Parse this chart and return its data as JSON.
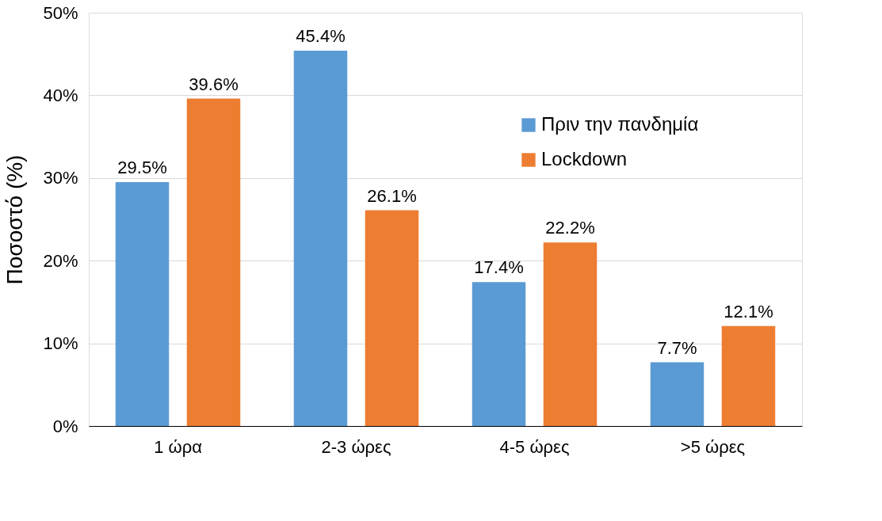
{
  "chart_data": {
    "type": "bar",
    "ylabel": "Ποσοστό (%)",
    "categories": [
      "1 ώρα",
      "2-3 ώρες",
      "4-5 ώρες",
      ">5 ώρες"
    ],
    "series": [
      {
        "name": "Πριν την πανδημία",
        "color": "#5b9bd5",
        "values": [
          29.5,
          45.4,
          17.4,
          7.7
        ],
        "value_labels": [
          "29.5%",
          "45.4%",
          "17.4%",
          "7.7%"
        ]
      },
      {
        "name": "Lockdown",
        "color": "#ed7d31",
        "values": [
          39.6,
          26.1,
          22.2,
          12.1
        ],
        "value_labels": [
          "39.6%",
          "26.1%",
          "22.2%",
          "12.1%"
        ]
      }
    ],
    "ylim": [
      0,
      50
    ],
    "yticks": [
      {
        "value": 0,
        "label": "0%"
      },
      {
        "value": 10,
        "label": "10%"
      },
      {
        "value": 20,
        "label": "20%"
      },
      {
        "value": 30,
        "label": "30%"
      },
      {
        "value": 40,
        "label": "40%"
      },
      {
        "value": 50,
        "label": "50%"
      }
    ],
    "grid": "y",
    "legend": "top right"
  }
}
